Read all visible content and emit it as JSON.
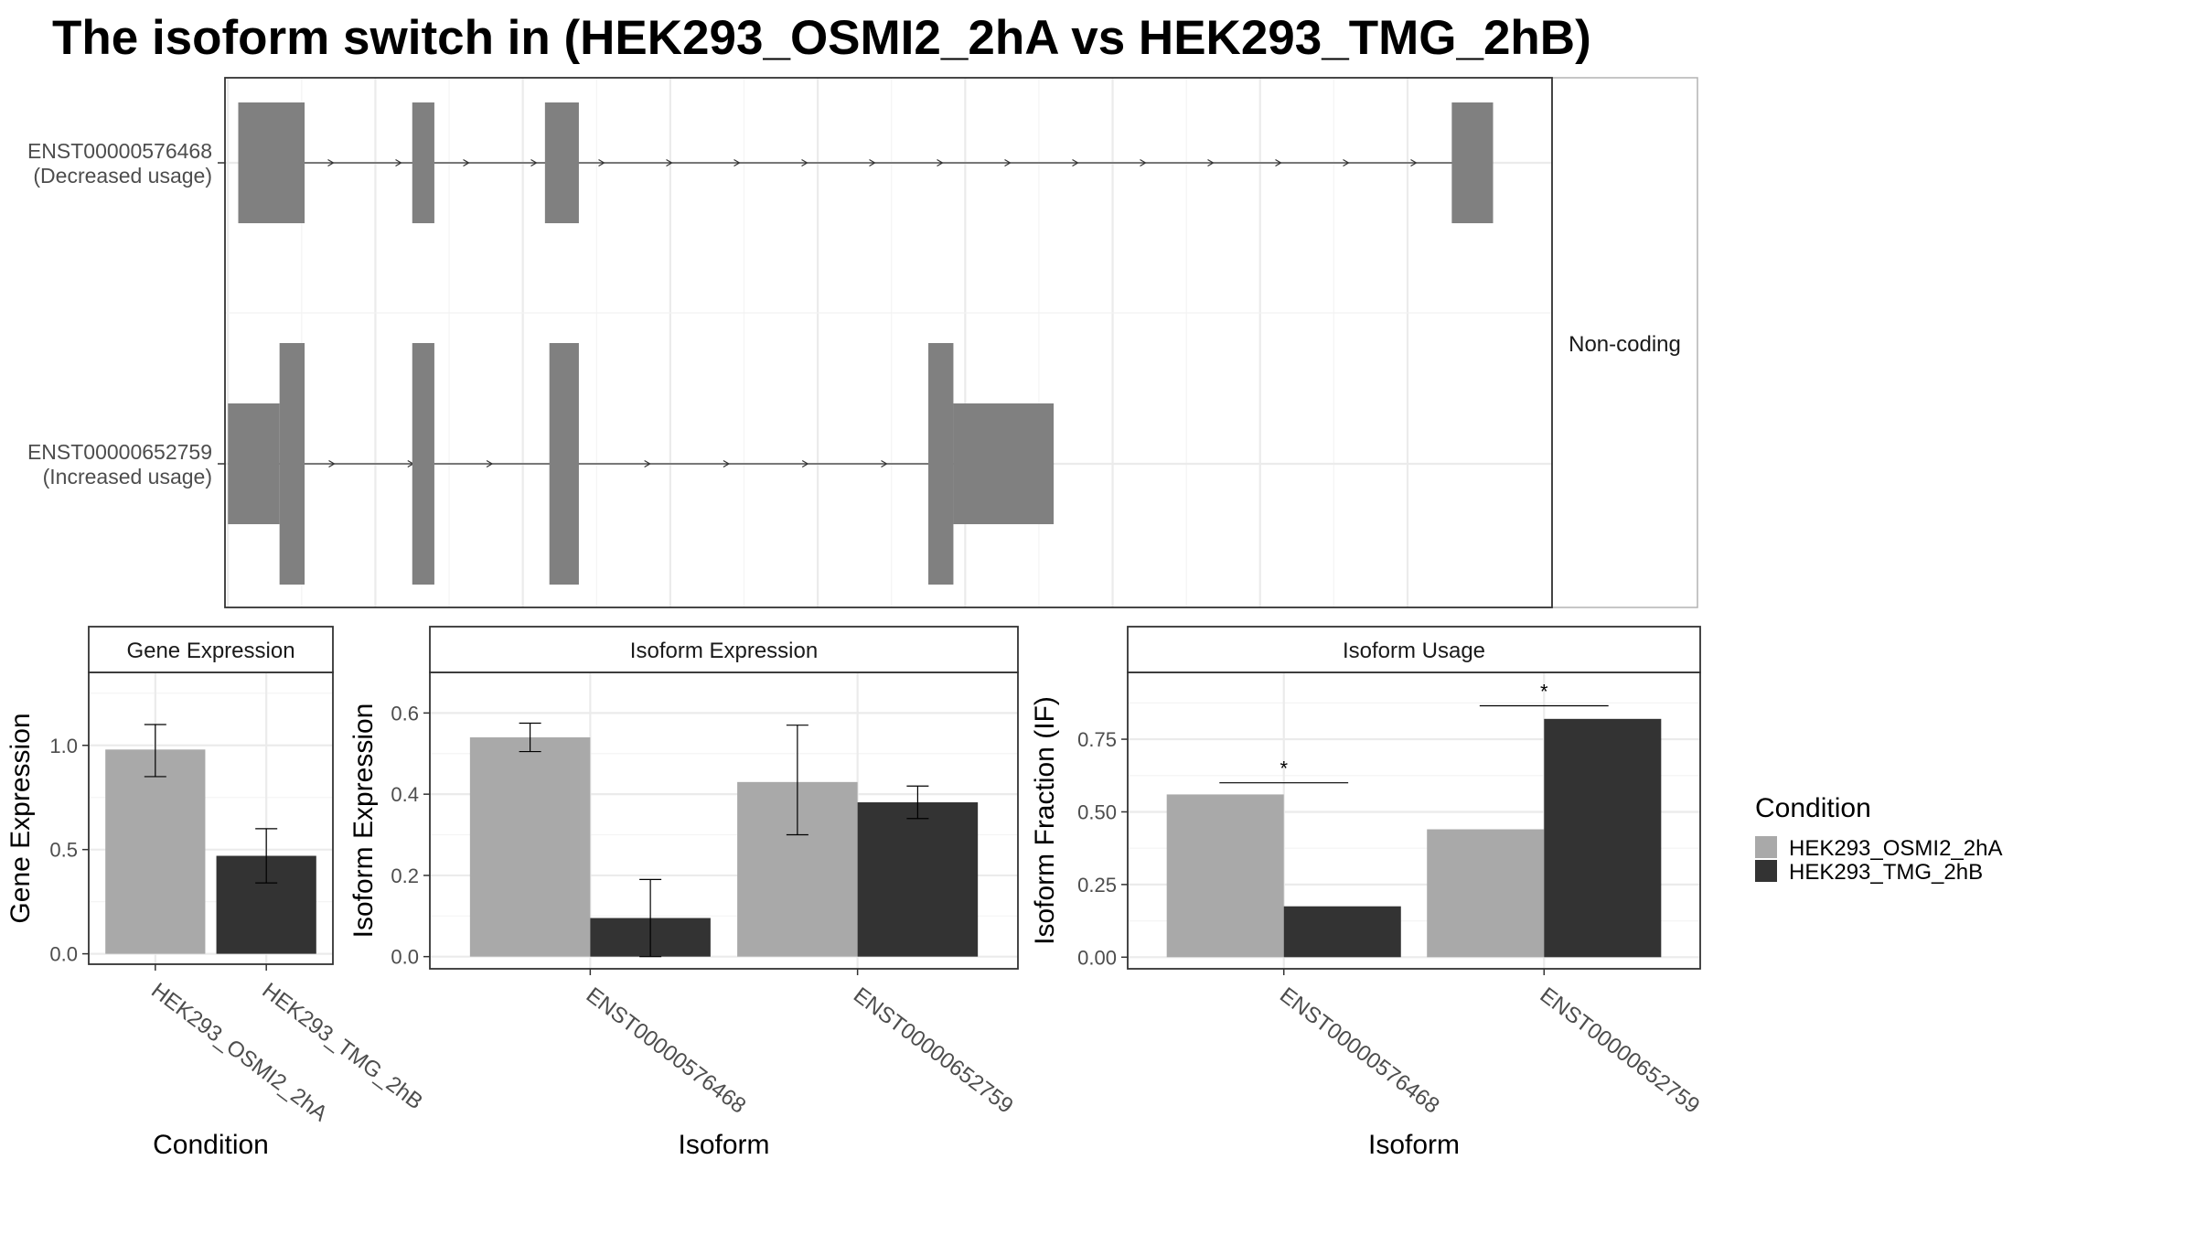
{
  "title": "The isoform switch in  (HEK293_OSMI2_2hA vs HEK293_TMG_2hB)",
  "legend": {
    "title": "Condition",
    "items": [
      {
        "label": "HEK293_OSMI2_2hA",
        "color": "#A9A9A9"
      },
      {
        "label": "HEK293_TMG_2hB",
        "color": "#333333"
      }
    ]
  },
  "chart_data": [
    {
      "type": "gene-structure",
      "facet_label": "Non-coding",
      "exon_color": "#808080",
      "tracks": [
        {
          "id": "ENST00000576468",
          "annotation": "(Decreased usage)",
          "exons": [
            {
              "start": 0.07,
              "end": 0.52,
              "kind": "noncoding"
            },
            {
              "start": 1.25,
              "end": 1.4,
              "kind": "noncoding"
            },
            {
              "start": 2.15,
              "end": 2.38,
              "kind": "noncoding"
            },
            {
              "start": 8.3,
              "end": 8.58,
              "kind": "noncoding"
            }
          ]
        },
        {
          "id": "ENST00000652759",
          "annotation": "(Increased usage)",
          "exons": [
            {
              "start": 0.0,
              "end": 0.35,
              "kind": "noncoding"
            },
            {
              "start": 0.35,
              "end": 0.52,
              "kind": "coding"
            },
            {
              "start": 1.25,
              "end": 1.4,
              "kind": "coding"
            },
            {
              "start": 2.18,
              "end": 2.38,
              "kind": "coding"
            },
            {
              "start": 4.75,
              "end": 4.92,
              "kind": "coding"
            },
            {
              "start": 4.92,
              "end": 5.6,
              "kind": "noncoding"
            }
          ]
        }
      ],
      "xlim": [
        -0.02,
        8.98
      ],
      "grid": true
    },
    {
      "type": "bar",
      "title": "Gene Expression",
      "xlabel": "Condition",
      "ylabel": "Gene Expression",
      "categories": [
        "HEK293_OSMI2_2hA",
        "HEK293_TMG_2hB"
      ],
      "values": [
        0.98,
        0.47
      ],
      "error_low": [
        0.85,
        0.34
      ],
      "error_high": [
        1.1,
        0.6
      ],
      "colors": [
        "#A9A9A9",
        "#333333"
      ],
      "ylim": [
        -0.05,
        1.35
      ],
      "yticks": [
        0.0,
        0.5,
        1.0
      ],
      "ytick_labels": [
        "0.0",
        "0.5",
        "1.0"
      ],
      "grid": true
    },
    {
      "type": "bar",
      "title": "Isoform Expression",
      "xlabel": "Isoform",
      "ylabel": "Isoform Expression",
      "categories": [
        "ENST00000576468",
        "ENST00000652759"
      ],
      "series": [
        {
          "name": "HEK293_OSMI2_2hA",
          "color": "#A9A9A9",
          "values": [
            0.54,
            0.43
          ],
          "error_low": [
            0.505,
            0.3
          ],
          "error_high": [
            0.575,
            0.57
          ]
        },
        {
          "name": "HEK293_TMG_2hB",
          "color": "#333333",
          "values": [
            0.095,
            0.38
          ],
          "error_low": [
            0.0,
            0.34
          ],
          "error_high": [
            0.19,
            0.42
          ]
        }
      ],
      "ylim": [
        -0.03,
        0.7
      ],
      "yticks": [
        0.0,
        0.2,
        0.4,
        0.6
      ],
      "ytick_labels": [
        "0.0",
        "0.2",
        "0.4",
        "0.6"
      ],
      "grid": true
    },
    {
      "type": "bar",
      "title": "Isoform Usage",
      "xlabel": "Isoform",
      "ylabel": "Isoform Fraction (IF)",
      "categories": [
        "ENST00000576468",
        "ENST00000652759"
      ],
      "series": [
        {
          "name": "HEK293_OSMI2_2hA",
          "color": "#A9A9A9",
          "values": [
            0.56,
            0.44
          ]
        },
        {
          "name": "HEK293_TMG_2hB",
          "color": "#333333",
          "values": [
            0.175,
            0.82
          ]
        }
      ],
      "significance": [
        {
          "category": "ENST00000576468",
          "label": "*",
          "y": 0.6
        },
        {
          "category": "ENST00000652759",
          "label": "*",
          "y": 0.865
        }
      ],
      "ylim": [
        -0.04,
        0.98
      ],
      "yticks": [
        0.0,
        0.25,
        0.5,
        0.75
      ],
      "ytick_labels": [
        "0.00",
        "0.25",
        "0.50",
        "0.75"
      ],
      "grid": true
    }
  ]
}
